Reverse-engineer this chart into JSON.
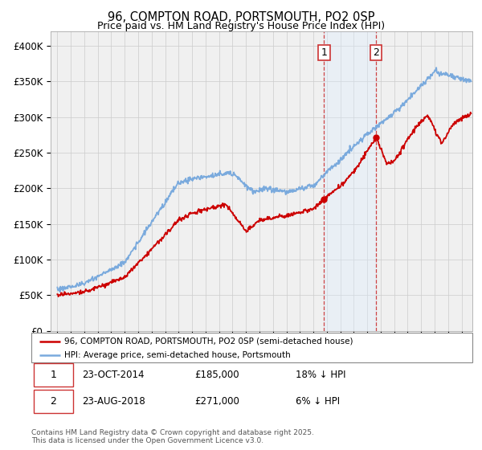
{
  "title": "96, COMPTON ROAD, PORTSMOUTH, PO2 0SP",
  "subtitle": "Price paid vs. HM Land Registry's House Price Index (HPI)",
  "ylabel_ticks": [
    "£0",
    "£50K",
    "£100K",
    "£150K",
    "£200K",
    "£250K",
    "£300K",
    "£350K",
    "£400K"
  ],
  "ytick_values": [
    0,
    50000,
    100000,
    150000,
    200000,
    250000,
    300000,
    350000,
    400000
  ],
  "ylim": [
    0,
    420000
  ],
  "xlim_start": 1994.5,
  "xlim_end": 2025.8,
  "line_color_red": "#cc0000",
  "line_color_blue": "#7aaadd",
  "highlight_color": "#ddeeff",
  "vertical_line_color": "#cc3333",
  "point1_x": 2014.8,
  "point1_y": 185000,
  "point2_x": 2018.65,
  "point2_y": 271000,
  "legend_line1": "96, COMPTON ROAD, PORTSMOUTH, PO2 0SP (semi-detached house)",
  "legend_line2": "HPI: Average price, semi-detached house, Portsmouth",
  "table_row1": [
    "1",
    "23-OCT-2014",
    "£185,000",
    "18% ↓ HPI"
  ],
  "table_row2": [
    "2",
    "23-AUG-2018",
    "£271,000",
    "6% ↓ HPI"
  ],
  "footer": "Contains HM Land Registry data © Crown copyright and database right 2025.\nThis data is licensed under the Open Government Licence v3.0.",
  "background_color": "#ffffff",
  "plot_bg_color": "#f0f0f0"
}
